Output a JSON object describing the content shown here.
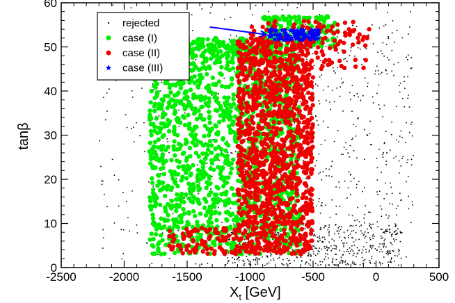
{
  "chart_data": {
    "type": "scatter",
    "title": "",
    "xlabel": "X_t [GeV]",
    "xlabel_main": "X",
    "xlabel_sub": "t",
    "xlabel_unit": " [GeV]",
    "ylabel": "tanβ",
    "ylabel_main": "tan",
    "ylabel_greek": "β",
    "xlim": [
      -2500,
      500
    ],
    "ylim": [
      0,
      60
    ],
    "x_ticks": [
      -2500,
      -2000,
      -1500,
      -1000,
      -500,
      0,
      500
    ],
    "x_tick_labels": [
      "-2500",
      "-2000",
      "-1500",
      "-1000",
      "-500",
      "0",
      "500"
    ],
    "y_ticks": [
      0,
      10,
      20,
      30,
      40,
      50,
      60
    ],
    "y_tick_labels": [
      "0",
      "10",
      "20",
      "30",
      "40",
      "50",
      "60"
    ],
    "grid": false,
    "legend_position": "top-left",
    "series": [
      {
        "name": "rejected",
        "label": "rejected",
        "marker": "dot",
        "color": "#000000",
        "regions": [
          {
            "x": [
              -2200,
              300
            ],
            "y": [
              0.5,
              60
            ],
            "n": 420
          },
          {
            "x": [
              -1200,
              200
            ],
            "y": [
              0.5,
              10
            ],
            "n": 550
          },
          {
            "x": [
              -700,
              300
            ],
            "y": [
              10,
              55
            ],
            "n": 260
          }
        ]
      },
      {
        "name": "case (I)",
        "label": "case (I)",
        "marker": "circle",
        "color": "#00ee00",
        "regions": [
          {
            "x": [
              -1800,
              -600
            ],
            "y": [
              3,
              50
            ],
            "n": 1500
          },
          {
            "x": [
              -1900,
              -800
            ],
            "y": [
              48.5,
              52
            ],
            "n": 220
          },
          {
            "x": [
              -900,
              -300
            ],
            "y": [
              50,
              57
            ],
            "n": 160
          }
        ]
      },
      {
        "name": "case (II)",
        "label": "case (II)",
        "marker": "circle",
        "color": "#ee0000",
        "regions": [
          {
            "x": [
              -1100,
              -500
            ],
            "y": [
              3,
              52
            ],
            "n": 1300
          },
          {
            "x": [
              -1650,
              -1100
            ],
            "y": [
              3,
              9
            ],
            "n": 90
          },
          {
            "x": [
              -1000,
              -50
            ],
            "y": [
              45,
              56
            ],
            "n": 140
          }
        ]
      },
      {
        "name": "case (III)",
        "label": "case (III)",
        "marker": "star",
        "color": "#0000ff",
        "regions": [
          {
            "x": [
              -850,
              -450
            ],
            "y": [
              51.5,
              54
            ],
            "n": 90
          }
        ]
      }
    ],
    "annotations": [
      {
        "type": "arrow",
        "color": "#0000ff",
        "from": [
          -1320,
          54.5
        ],
        "to": [
          -870,
          52.8
        ]
      }
    ]
  }
}
